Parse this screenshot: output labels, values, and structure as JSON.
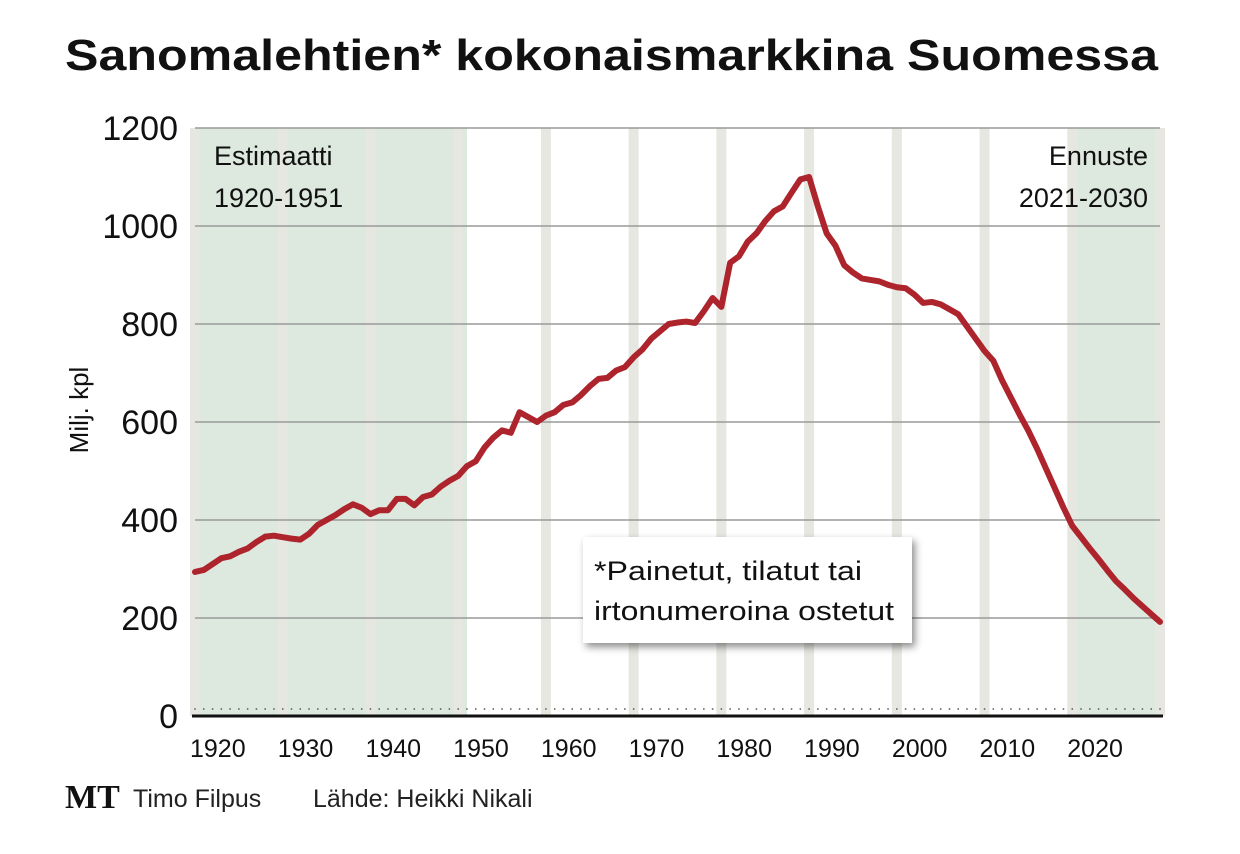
{
  "chart_data": {
    "type": "line",
    "title": "Sanomalehtien* kokonaismarkkina Suomessa",
    "y_label": "Milj. kpl",
    "x": [
      1920,
      1921,
      1922,
      1923,
      1924,
      1925,
      1926,
      1927,
      1928,
      1929,
      1930,
      1931,
      1932,
      1933,
      1934,
      1935,
      1936,
      1937,
      1938,
      1939,
      1940,
      1941,
      1942,
      1943,
      1944,
      1945,
      1946,
      1947,
      1948,
      1949,
      1950,
      1951,
      1952,
      1953,
      1954,
      1955,
      1956,
      1957,
      1958,
      1959,
      1960,
      1961,
      1962,
      1963,
      1964,
      1965,
      1966,
      1967,
      1968,
      1969,
      1970,
      1971,
      1972,
      1973,
      1974,
      1975,
      1976,
      1977,
      1978,
      1979,
      1980,
      1981,
      1982,
      1983,
      1984,
      1985,
      1986,
      1987,
      1988,
      1989,
      1990,
      1991,
      1992,
      1993,
      1994,
      1995,
      1996,
      1997,
      1998,
      1999,
      2000,
      2001,
      2002,
      2003,
      2004,
      2005,
      2006,
      2007,
      2008,
      2009,
      2010,
      2011,
      2012,
      2013,
      2014,
      2015,
      2016,
      2017,
      2018,
      2019,
      2020,
      2021,
      2022,
      2023,
      2024,
      2025,
      2026,
      2027,
      2028,
      2029,
      2030
    ],
    "series": [
      {
        "name": "Sanomalehtien kokonaismarkkina",
        "color": "#ad242c",
        "values": [
          294,
          298,
          310,
          322,
          326,
          335,
          342,
          355,
          366,
          368,
          365,
          362,
          360,
          372,
          390,
          400,
          410,
          422,
          432,
          425,
          412,
          420,
          420,
          443,
          443,
          430,
          447,
          452,
          468,
          480,
          490,
          510,
          520,
          548,
          568,
          583,
          578,
          620,
          610,
          600,
          613,
          620,
          635,
          640,
          655,
          673,
          688,
          690,
          705,
          712,
          732,
          748,
          770,
          785,
          800,
          803,
          805,
          802,
          826,
          853,
          835,
          925,
          938,
          968,
          985,
          1010,
          1030,
          1040,
          1068,
          1095,
          1100,
          1040,
          985,
          960,
          920,
          905,
          893,
          890,
          887,
          880,
          875,
          873,
          860,
          843,
          845,
          840,
          830,
          820,
          795,
          770,
          745,
          725,
          685,
          650,
          615,
          582,
          545,
          505,
          465,
          425,
          388,
          365,
          342,
          320,
          297,
          275,
          258,
          240,
          224,
          208,
          192
        ]
      }
    ],
    "xlim": [
      1920,
      2030
    ],
    "xticks": [
      1920,
      1930,
      1940,
      1950,
      1960,
      1970,
      1980,
      1990,
      2000,
      2010,
      2020
    ],
    "ylim": [
      0,
      1200
    ],
    "yticks": [
      0,
      200,
      400,
      600,
      800,
      1000,
      1200
    ],
    "grid": true,
    "shaded": [
      {
        "from": 1920,
        "to": 1951
      },
      {
        "from": 2020,
        "to": 2030
      }
    ],
    "shade_color": "#dde8df",
    "annotations": [
      [
        "Estimaatti",
        "1920-1951"
      ],
      [
        "Ennuste",
        "2021-2030"
      ]
    ],
    "note": [
      "*Painetut, tilatut tai",
      "irtonumeroina ostetut"
    ]
  },
  "footer": {
    "logo": "MT",
    "author": "Timo Filpus",
    "source": "Lähde: Heikki Nikali"
  }
}
